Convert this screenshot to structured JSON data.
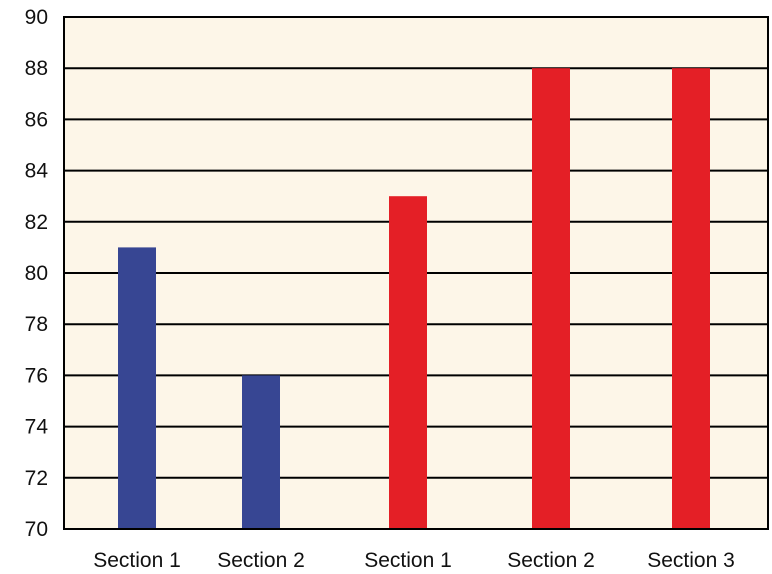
{
  "chart_data": {
    "type": "bar",
    "categories": [
      "Section 1",
      "Section 2",
      "Section 1",
      "Section 2",
      "Section 3"
    ],
    "values": [
      81,
      76,
      83,
      88,
      88
    ],
    "bar_colors": [
      "#374693",
      "#374693",
      "#e41f26",
      "#e41f26",
      "#e41f26"
    ],
    "ylim": [
      70,
      90
    ],
    "yticks": [
      70,
      72,
      74,
      76,
      78,
      80,
      82,
      84,
      86,
      88,
      90
    ],
    "title": "",
    "xlabel": "",
    "ylabel": "",
    "grid": true,
    "legend": "none",
    "plot_background": "#fdf6e8"
  }
}
